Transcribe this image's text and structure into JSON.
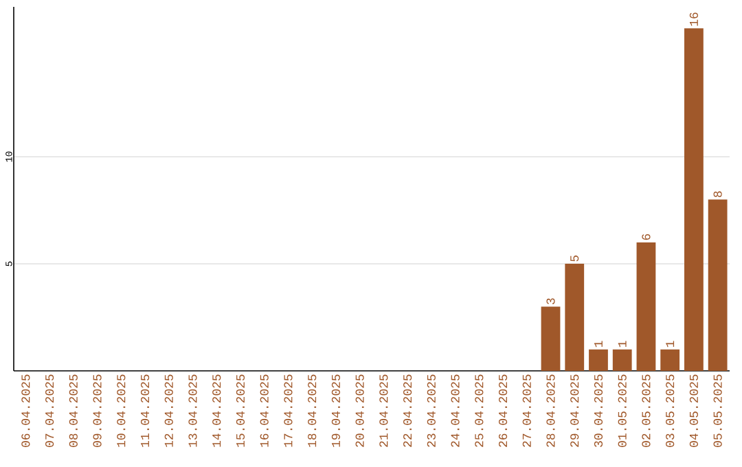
{
  "chart_data": {
    "type": "bar",
    "categories": [
      "06.04.2025",
      "07.04.2025",
      "08.04.2025",
      "09.04.2025",
      "10.04.2025",
      "11.04.2025",
      "12.04.2025",
      "13.04.2025",
      "14.04.2025",
      "15.04.2025",
      "16.04.2025",
      "17.04.2025",
      "18.04.2025",
      "19.04.2025",
      "20.04.2025",
      "21.04.2025",
      "22.04.2025",
      "23.04.2025",
      "24.04.2025",
      "25.04.2025",
      "26.04.2025",
      "27.04.2025",
      "28.04.2025",
      "29.04.2025",
      "30.04.2025",
      "01.05.2025",
      "02.05.2025",
      "03.05.2025",
      "04.05.2025",
      "05.05.2025"
    ],
    "values": [
      0,
      0,
      0,
      0,
      0,
      0,
      0,
      0,
      0,
      0,
      0,
      0,
      0,
      0,
      0,
      0,
      0,
      0,
      0,
      0,
      0,
      0,
      3,
      5,
      1,
      1,
      6,
      1,
      16,
      8
    ],
    "value_labels": [
      null,
      null,
      null,
      null,
      null,
      null,
      null,
      null,
      null,
      null,
      null,
      null,
      null,
      null,
      null,
      null,
      null,
      null,
      null,
      null,
      null,
      null,
      "3",
      "5",
      "1",
      "1",
      "6",
      "1",
      "16",
      "8"
    ],
    "color": "#a0582a",
    "ylim": [
      0,
      17
    ],
    "yticks": [
      5,
      10
    ],
    "grid": "y"
  }
}
